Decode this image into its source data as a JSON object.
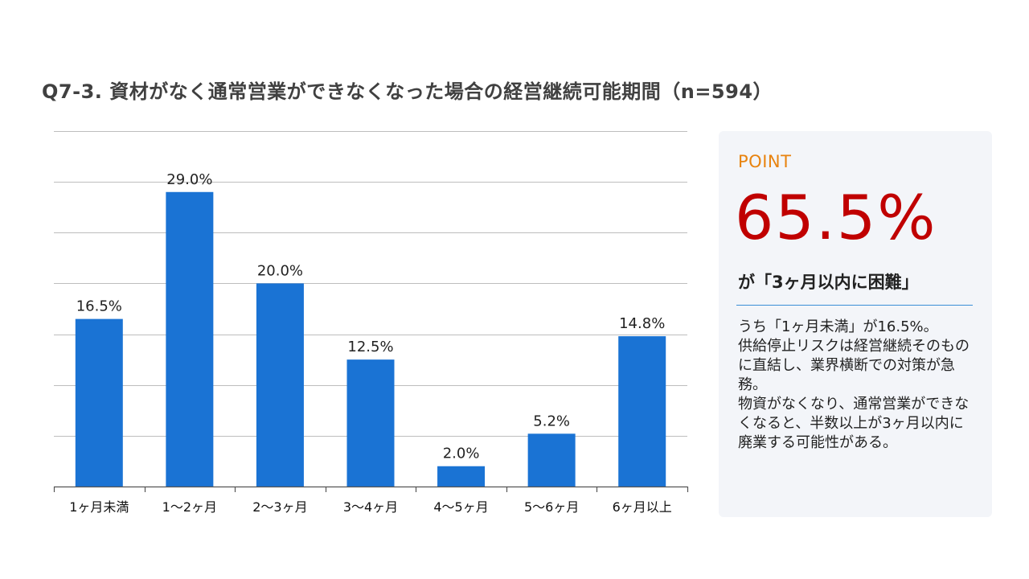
{
  "title": "Q7-3. 資材がなく通常営業ができなくなった場合の経営継続可能期間（n=594）",
  "chart_data": {
    "type": "bar",
    "categories": [
      "1ヶ月未満",
      "1～2ヶ月",
      "2～3ヶ月",
      "3～4ヶ月",
      "4～5ヶ月",
      "5～6ヶ月",
      "6ヶ月以上"
    ],
    "values": [
      16.5,
      29.0,
      20.0,
      12.5,
      2.0,
      5.2,
      14.8
    ],
    "value_labels": [
      "16.5%",
      "29.0%",
      "20.0%",
      "12.5%",
      "2.0%",
      "5.2%",
      "14.8%"
    ],
    "ylim": [
      0,
      35
    ],
    "grid": true,
    "bar_color": "#1a73d4"
  },
  "point": {
    "heading": "POINT",
    "big_value": "65.5%",
    "caption": "が「3ヶ月以内に困難」",
    "body": [
      "うち「1ヶ月未満」が16.5%。",
      "供給停止リスクは経営継続そのものに直結し、業界横断での対策が急務。",
      "物資がなくなり、通常営業ができなくなると、半数以上が3ヶ月以内に廃業する可能性がある。"
    ],
    "heading_color": "#e8830f",
    "big_value_color": "#c00000"
  }
}
